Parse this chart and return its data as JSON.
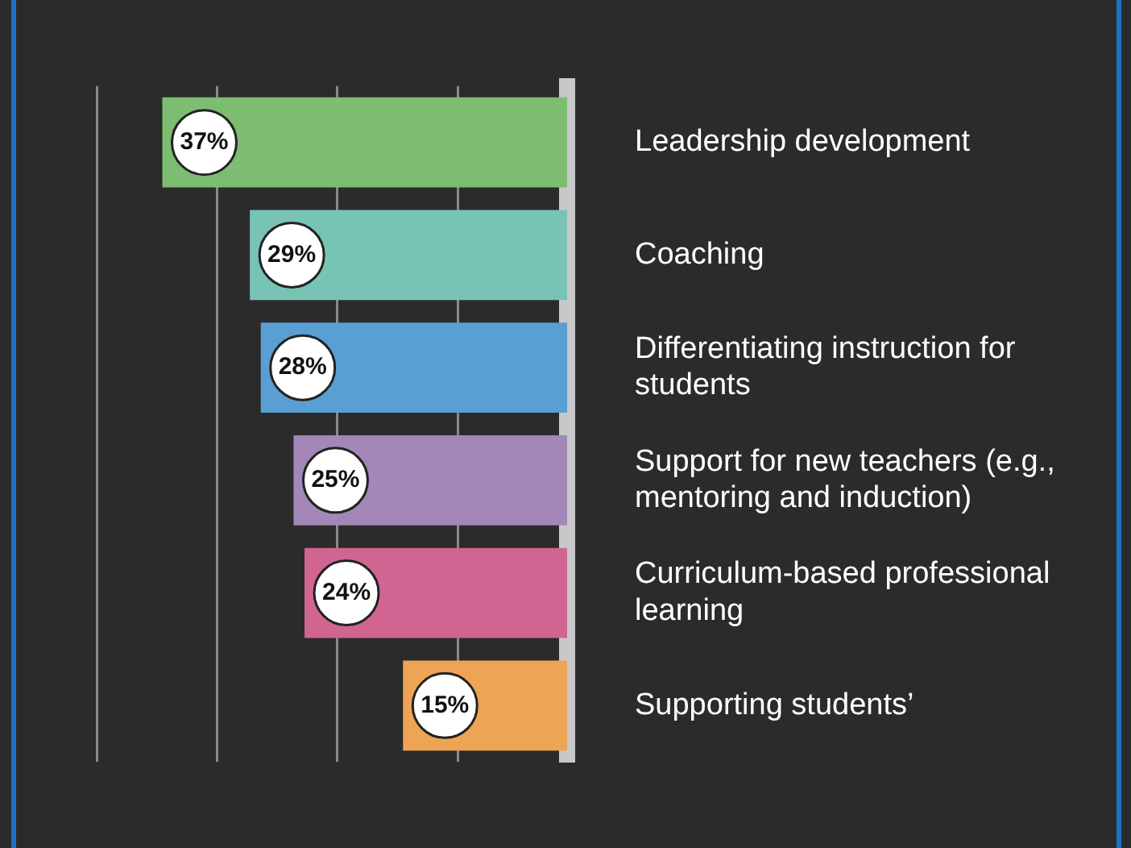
{
  "chart_data": {
    "type": "bar",
    "orientation": "horizontal",
    "categories": [
      "Leadership development",
      "Coaching",
      "Differentiating instruction for students",
      "Support for new teachers (e.g., mentoring and induction)",
      "Curriculum-based professional learning",
      "Supporting students’"
    ],
    "values": [
      37,
      29,
      28,
      25,
      24,
      15
    ],
    "colors": [
      "#7dbd72",
      "#78c4b4",
      "#5a9fd4",
      "#a387b8",
      "#d06591",
      "#eda454"
    ],
    "value_labels": [
      "37%",
      "29%",
      "28%",
      "25%",
      "24%",
      "15%"
    ],
    "xlim": [
      43,
      0
    ],
    "xticks": [
      {
        "value": 10,
        "label": null
      },
      {
        "value": 21,
        "label": null
      },
      {
        "value": 32,
        "label": null
      },
      {
        "value": 43,
        "label": null
      }
    ],
    "grid": "x",
    "tick_labels": "y"
  }
}
